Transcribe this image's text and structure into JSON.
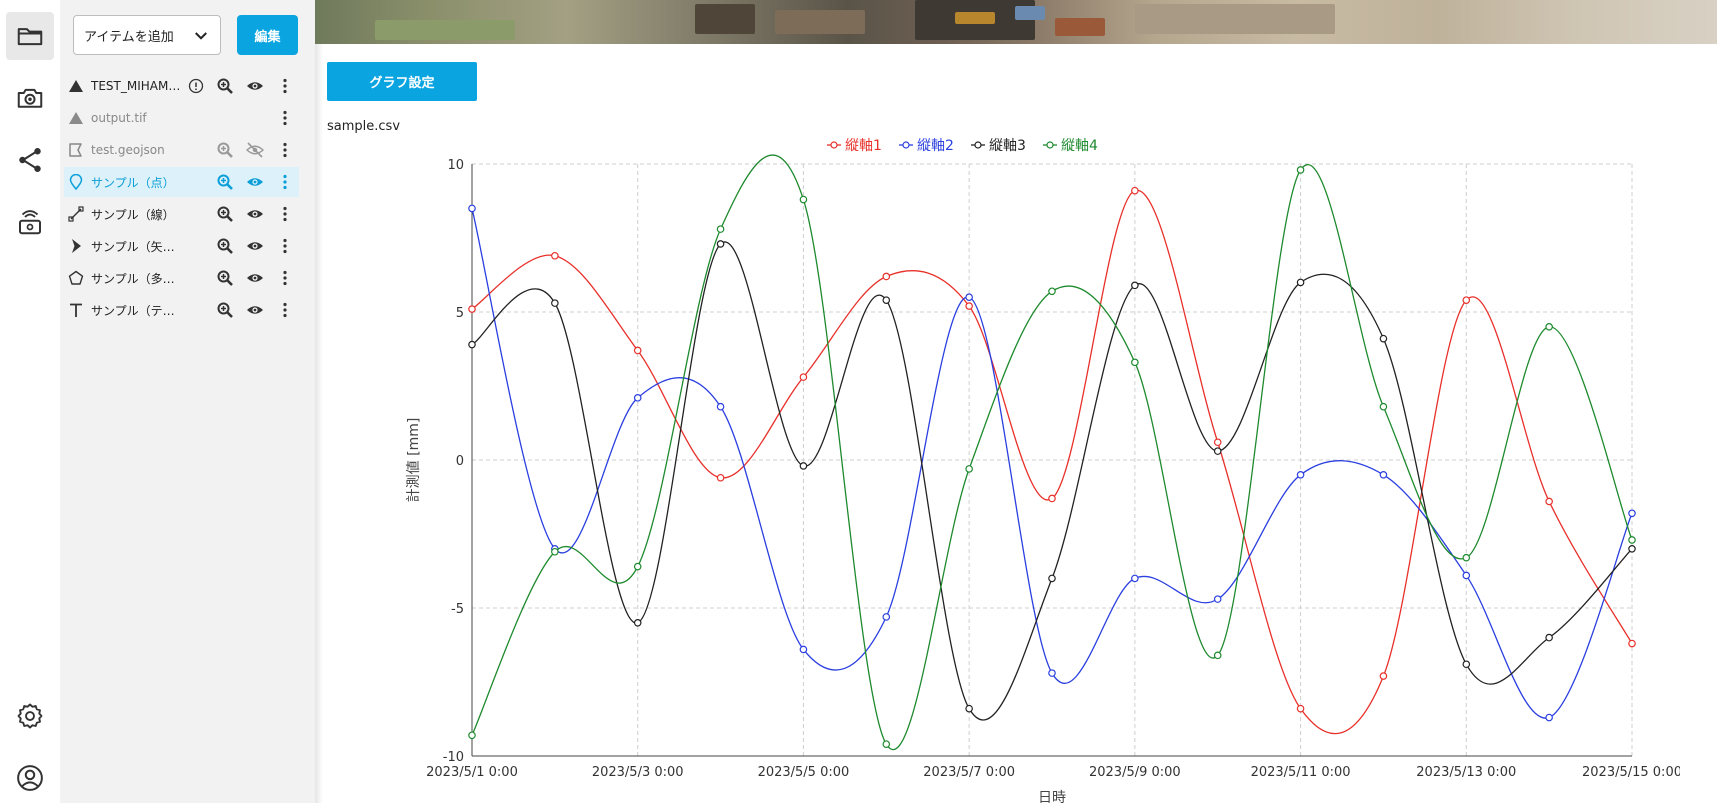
{
  "rail": {
    "items": [
      {
        "name": "folder-icon"
      },
      {
        "name": "camera-icon"
      },
      {
        "name": "share-icon"
      },
      {
        "name": "sensor-icon"
      },
      {
        "name": "settings-icon"
      },
      {
        "name": "account-icon"
      }
    ]
  },
  "panel": {
    "add_item_label": "アイテムを追加",
    "edit_label": "編集",
    "layers": [
      {
        "name": "TEST_MIHAMA...",
        "type_icon": "terrain-icon",
        "actions": [
          "info-icon",
          "zoom-icon",
          "eye-icon",
          "more-icon"
        ]
      },
      {
        "name": "output.tif",
        "type_icon": "terrain-icon",
        "actions": [
          "more-icon"
        ]
      },
      {
        "name": "test.geojson",
        "type_icon": "geojson-icon",
        "actions": [
          "zoom-icon",
          "eye-off-icon",
          "more-icon"
        ]
      },
      {
        "name": "サンプル（点）",
        "type_icon": "pin-icon",
        "actions": [
          "zoom-icon",
          "eye-icon",
          "more-icon"
        ]
      },
      {
        "name": "サンプル（線）",
        "type_icon": "line-icon",
        "actions": [
          "zoom-icon",
          "eye-icon",
          "more-icon"
        ]
      },
      {
        "name": "サンプル（矢印）",
        "type_icon": "arrow-icon",
        "actions": [
          "zoom-icon",
          "eye-icon",
          "more-icon"
        ]
      },
      {
        "name": "サンプル（多角形）",
        "type_icon": "polygon-icon",
        "actions": [
          "zoom-icon",
          "eye-icon",
          "more-icon"
        ]
      },
      {
        "name": "サンプル（テキス...",
        "type_icon": "text-icon",
        "actions": [
          "zoom-icon",
          "eye-icon",
          "more-icon"
        ]
      }
    ]
  },
  "main": {
    "graph_settings_label": "グラフ設定",
    "file_name": "sample.csv"
  },
  "chart_data": {
    "type": "line",
    "xlabel": "日時",
    "ylabel": "計測値 [mm]",
    "ylim": [
      -10,
      10
    ],
    "yticks": [
      10,
      5,
      0,
      -5,
      -10
    ],
    "xticks": [
      "2023/5/1 0:00",
      "2023/5/3 0:00",
      "2023/5/5 0:00",
      "2023/5/7 0:00",
      "2023/5/9 0:00",
      "2023/5/11 0:00",
      "2023/5/13 0:00",
      "2023/5/15 0:00"
    ],
    "x": [
      "2023/5/1",
      "2023/5/2",
      "2023/5/3",
      "2023/5/4",
      "2023/5/5",
      "2023/5/6",
      "2023/5/7",
      "2023/5/8",
      "2023/5/9",
      "2023/5/10",
      "2023/5/11",
      "2023/5/12",
      "2023/5/13",
      "2023/5/14",
      "2023/5/15"
    ],
    "grid": true,
    "legend_position": "top",
    "series": [
      {
        "name": "縦軸1",
        "color": "#e8302a",
        "values": [
          5.1,
          6.9,
          3.7,
          -0.6,
          2.8,
          6.2,
          5.2,
          -1.3,
          9.1,
          0.6,
          -8.4,
          -7.3,
          5.4,
          -1.4,
          -6.2
        ]
      },
      {
        "name": "縦軸2",
        "color": "#2a3fe0",
        "values": [
          8.5,
          -3.0,
          2.1,
          1.8,
          -6.4,
          -5.3,
          5.5,
          -7.2,
          -4.0,
          -4.7,
          -0.5,
          -0.5,
          -3.9,
          -8.7,
          -1.8
        ]
      },
      {
        "name": "縦軸3",
        "color": "#222222",
        "values": [
          3.9,
          5.3,
          -5.5,
          7.3,
          -0.2,
          5.4,
          -8.4,
          -4.0,
          5.9,
          0.3,
          6.0,
          4.1,
          -6.9,
          -6.0,
          -3.0
        ]
      },
      {
        "name": "縦軸4",
        "color": "#1e8a2e",
        "values": [
          -9.3,
          -3.1,
          -3.6,
          7.8,
          8.8,
          -9.6,
          -0.3,
          5.7,
          3.3,
          -6.6,
          9.8,
          1.8,
          -3.3,
          4.5,
          -2.7
        ]
      }
    ]
  }
}
